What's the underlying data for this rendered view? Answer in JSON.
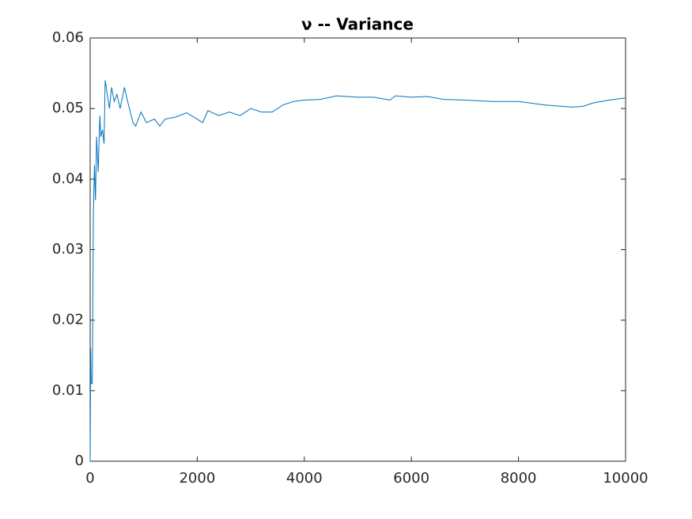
{
  "chart_data": {
    "type": "line",
    "title": "ν -- Variance",
    "x": [
      0,
      10,
      20,
      40,
      60,
      80,
      100,
      120,
      150,
      180,
      200,
      230,
      260,
      280,
      320,
      360,
      400,
      450,
      500,
      560,
      640,
      700,
      800,
      850,
      950,
      1050,
      1200,
      1300,
      1400,
      1600,
      1800,
      2000,
      2100,
      2200,
      2400,
      2600,
      2800,
      3000,
      3200,
      3400,
      3600,
      3800,
      4000,
      4300,
      4600,
      5000,
      5300,
      5600,
      5700,
      6000,
      6300,
      6600,
      7000,
      7500,
      8000,
      8500,
      9000,
      9200,
      9400,
      9700,
      10000
    ],
    "values": [
      0,
      0.016,
      0.011,
      0.011,
      0.035,
      0.042,
      0.037,
      0.046,
      0.041,
      0.049,
      0.046,
      0.047,
      0.045,
      0.054,
      0.052,
      0.05,
      0.053,
      0.051,
      0.052,
      0.05,
      0.053,
      0.051,
      0.048,
      0.0475,
      0.0495,
      0.048,
      0.0485,
      0.0475,
      0.0485,
      0.0488,
      0.0494,
      0.0485,
      0.048,
      0.0497,
      0.049,
      0.0495,
      0.049,
      0.05,
      0.0495,
      0.0495,
      0.0505,
      0.051,
      0.0512,
      0.0513,
      0.0518,
      0.0516,
      0.0516,
      0.0512,
      0.0518,
      0.0516,
      0.0517,
      0.0513,
      0.0512,
      0.051,
      0.051,
      0.0505,
      0.0502,
      0.0503,
      0.0508,
      0.0512,
      0.0515
    ],
    "color": "#0072bd",
    "xlim": [
      0,
      10000
    ],
    "xticks": [
      0,
      2000,
      4000,
      6000,
      8000,
      10000
    ],
    "ylim": [
      0,
      0.06
    ],
    "yticks": [
      0,
      0.01,
      0.02,
      0.03,
      0.04,
      0.05,
      0.06
    ],
    "grid": false
  }
}
